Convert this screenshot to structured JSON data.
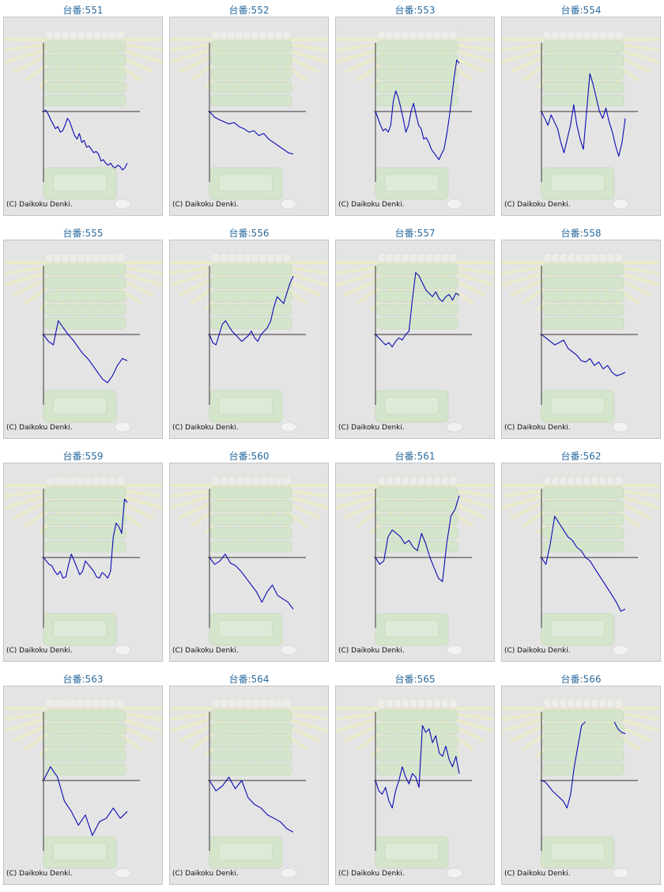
{
  "colors": {
    "line": "#0a0ab4",
    "axis": "#333333",
    "title": "#2b6b9e",
    "panel_bg": "#e4e4e4"
  },
  "chart_data": [
    {
      "type": "line",
      "title": "台番:551",
      "copyright": "(C) Daikoku Denki.",
      "ylim": [
        -100,
        100
      ],
      "values": [
        0,
        2,
        -4,
        -12,
        -18,
        -25,
        -22,
        -30,
        -28,
        -20,
        -10,
        -15,
        -25,
        -35,
        -40,
        -32,
        -45,
        -42,
        -52,
        -50,
        -55,
        -60,
        -58,
        -62,
        -72,
        -70,
        -75,
        -78,
        -75,
        -80,
        -82,
        -78,
        -80,
        -85,
        -82,
        -75
      ]
    },
    {
      "type": "line",
      "title": "台番:552",
      "copyright": "(C) Daikoku Denki.",
      "ylim": [
        -100,
        100
      ],
      "values": [
        0,
        -8,
        -12,
        -15,
        -18,
        -16,
        -22,
        -25,
        -30,
        -28,
        -35,
        -32,
        -40,
        -45,
        -50,
        -55,
        -60,
        -62
      ]
    },
    {
      "type": "line",
      "title": "台番:553",
      "copyright": "(C) Daikoku Denki.",
      "ylim": [
        -100,
        100
      ],
      "values": [
        0,
        -10,
        -20,
        -28,
        -25,
        -30,
        -20,
        15,
        30,
        20,
        5,
        -12,
        -30,
        -20,
        0,
        12,
        -5,
        -20,
        -25,
        -40,
        -38,
        -45,
        -55,
        -60,
        -65,
        -70,
        -62,
        -55,
        -35,
        -10,
        20,
        50,
        75,
        70
      ]
    },
    {
      "type": "line",
      "title": "台番:554",
      "copyright": "(C) Daikoku Denki.",
      "ylim": [
        -100,
        100
      ],
      "values": [
        0,
        -10,
        -20,
        -5,
        -15,
        -25,
        -45,
        -60,
        -40,
        -20,
        10,
        -20,
        -40,
        -55,
        0,
        55,
        40,
        20,
        0,
        -10,
        5,
        -15,
        -30,
        -50,
        -65,
        -45,
        -10
      ]
    },
    {
      "type": "line",
      "title": "台番:555",
      "copyright": "(C) Daikoku Denki.",
      "ylim": [
        -100,
        100
      ],
      "values": [
        0,
        -10,
        -15,
        20,
        10,
        0,
        -8,
        -18,
        -28,
        -35,
        -45,
        -55,
        -65,
        -70,
        -60,
        -45,
        -35,
        -38
      ]
    },
    {
      "type": "line",
      "title": "台番:556",
      "copyright": "(C) Daikoku Denki.",
      "ylim": [
        -100,
        100
      ],
      "values": [
        0,
        -12,
        -15,
        0,
        15,
        20,
        12,
        5,
        0,
        -5,
        -10,
        -6,
        -2,
        5,
        -5,
        -10,
        0,
        5,
        10,
        20,
        40,
        55,
        50,
        45,
        60,
        75,
        85
      ]
    },
    {
      "type": "line",
      "title": "台番:557",
      "copyright": "(C) Daikoku Denki.",
      "ylim": [
        -100,
        100
      ],
      "values": [
        0,
        -5,
        -10,
        -15,
        -12,
        -18,
        -10,
        -5,
        -8,
        0,
        5,
        50,
        90,
        85,
        75,
        65,
        60,
        55,
        62,
        52,
        48,
        55,
        58,
        50,
        60,
        57
      ]
    },
    {
      "type": "line",
      "title": "台番:558",
      "copyright": "(C) Daikoku Denki.",
      "ylim": [
        -100,
        100
      ],
      "values": [
        0,
        -5,
        -10,
        -15,
        -12,
        -8,
        -20,
        -25,
        -30,
        -38,
        -40,
        -35,
        -45,
        -40,
        -50,
        -45,
        -55,
        -60,
        -58,
        -55
      ]
    },
    {
      "type": "line",
      "title": "台番:559",
      "copyright": "(C) Daikoku Denki.",
      "ylim": [
        -100,
        100
      ],
      "values": [
        0,
        -5,
        -10,
        -12,
        -20,
        -25,
        -20,
        -30,
        -28,
        -10,
        5,
        -5,
        -15,
        -25,
        -20,
        -5,
        -10,
        -15,
        -20,
        -28,
        -30,
        -22,
        -25,
        -30,
        -20,
        30,
        50,
        45,
        35,
        85,
        80
      ]
    },
    {
      "type": "line",
      "title": "台番:560",
      "copyright": "(C) Daikoku Denki.",
      "ylim": [
        -100,
        100
      ],
      "values": [
        0,
        -10,
        -5,
        5,
        -8,
        -12,
        -20,
        -30,
        -40,
        -50,
        -65,
        -50,
        -40,
        -55,
        -60,
        -65,
        -75
      ]
    },
    {
      "type": "line",
      "title": "台番:561",
      "copyright": "(C) Daikoku Denki.",
      "ylim": [
        -100,
        100
      ],
      "values": [
        0,
        -10,
        -5,
        30,
        40,
        35,
        30,
        20,
        25,
        15,
        10,
        35,
        20,
        0,
        -15,
        -30,
        -35,
        20,
        60,
        70,
        90
      ]
    },
    {
      "type": "line",
      "title": "台番:562",
      "copyright": "(C) Daikoku Denki.",
      "ylim": [
        -100,
        100
      ],
      "values": [
        0,
        -10,
        20,
        60,
        50,
        40,
        30,
        25,
        15,
        10,
        0,
        -5,
        -15,
        -25,
        -35,
        -45,
        -55,
        -65,
        -78,
        -75
      ]
    },
    {
      "type": "line",
      "title": "台番:563",
      "copyright": "(C) Daikoku Denki.",
      "ylim": [
        -100,
        100
      ],
      "values": [
        0,
        20,
        5,
        -30,
        -45,
        -65,
        -50,
        -80,
        -60,
        -55,
        -40,
        -55,
        -45
      ]
    },
    {
      "type": "line",
      "title": "台番:564",
      "copyright": "(C) Daikoku Denki.",
      "ylim": [
        -100,
        100
      ],
      "values": [
        0,
        -15,
        -8,
        5,
        -12,
        0,
        -25,
        -35,
        -40,
        -50,
        -55,
        -60,
        -70,
        -75
      ]
    },
    {
      "type": "line",
      "title": "台番:565",
      "copyright": "(C) Daikoku Denki.",
      "ylim": [
        -100,
        100
      ],
      "values": [
        0,
        -15,
        -20,
        -10,
        -30,
        -40,
        -15,
        0,
        20,
        5,
        -5,
        10,
        5,
        -10,
        80,
        70,
        75,
        55,
        65,
        40,
        35,
        50,
        30,
        20,
        35,
        10
      ]
    },
    {
      "type": "line",
      "title": "台番:566",
      "copyright": "(C) Daikoku Denki.",
      "ylim": [
        -100,
        100
      ],
      "values": [
        0,
        -2,
        -8,
        -15,
        -20,
        -25,
        -30,
        -40,
        -20,
        20,
        50,
        80,
        85,
        null,
        null,
        null,
        null,
        null,
        null,
        null,
        85,
        75,
        70,
        68
      ]
    }
  ]
}
